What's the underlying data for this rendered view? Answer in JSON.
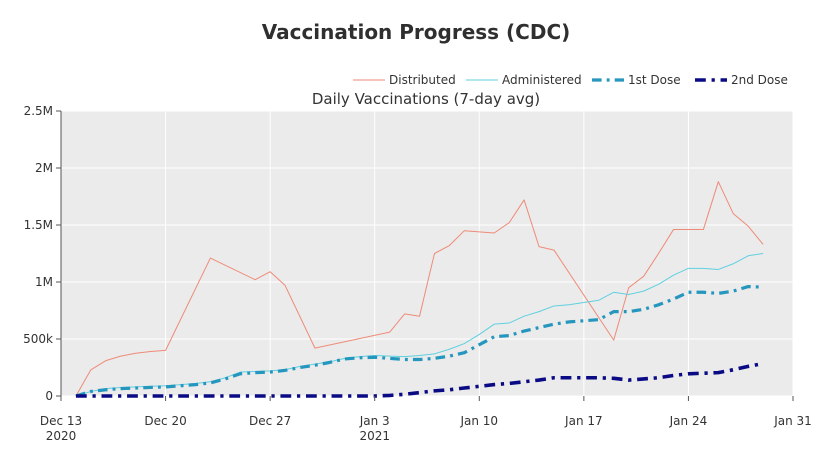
{
  "title": "Vaccination Progress (CDC)",
  "chart_data": {
    "type": "line",
    "title": "Daily Vaccinations (7-day avg)",
    "xlabel": "",
    "ylabel": "",
    "grid": true,
    "legend_position": "top-right",
    "xlim": [
      "2020-12-13",
      "2021-01-31"
    ],
    "ylim": [
      0,
      2500000
    ],
    "x_ticks": [
      {
        "date": "2020-12-13",
        "label": "Dec 13",
        "sub": "2020"
      },
      {
        "date": "2020-12-20",
        "label": "Dec 20",
        "sub": ""
      },
      {
        "date": "2020-12-27",
        "label": "Dec 27",
        "sub": ""
      },
      {
        "date": "2021-01-03",
        "label": "Jan 3",
        "sub": "2021"
      },
      {
        "date": "2021-01-10",
        "label": "Jan 10",
        "sub": ""
      },
      {
        "date": "2021-01-17",
        "label": "Jan 17",
        "sub": ""
      },
      {
        "date": "2021-01-24",
        "label": "Jan 24",
        "sub": ""
      },
      {
        "date": "2021-01-31",
        "label": "Jan 31",
        "sub": ""
      }
    ],
    "y_ticks": [
      {
        "value": 0,
        "label": "0"
      },
      {
        "value": 500000,
        "label": "500k"
      },
      {
        "value": 1000000,
        "label": "1M"
      },
      {
        "value": 1500000,
        "label": "1.5M"
      },
      {
        "value": 2000000,
        "label": "2M"
      },
      {
        "value": 2500000,
        "label": "2.5M"
      }
    ],
    "series": [
      {
        "name": "Distributed",
        "color": "#ef8a78",
        "style": "solid",
        "width": 1,
        "points": [
          [
            "2020-12-14",
            0
          ],
          [
            "2020-12-15",
            230000
          ],
          [
            "2020-12-16",
            310000
          ],
          [
            "2020-12-17",
            350000
          ],
          [
            "2020-12-18",
            375000
          ],
          [
            "2020-12-19",
            390000
          ],
          [
            "2020-12-20",
            400000
          ],
          [
            "2020-12-23",
            1210000
          ],
          [
            "2020-12-26",
            1020000
          ],
          [
            "2020-12-27",
            1090000
          ],
          [
            "2020-12-28",
            970000
          ],
          [
            "2020-12-30",
            420000
          ],
          [
            "2021-01-04",
            560000
          ],
          [
            "2021-01-05",
            720000
          ],
          [
            "2021-01-06",
            700000
          ],
          [
            "2021-01-07",
            1250000
          ],
          [
            "2021-01-08",
            1320000
          ],
          [
            "2021-01-09",
            1450000
          ],
          [
            "2021-01-11",
            1430000
          ],
          [
            "2021-01-12",
            1520000
          ],
          [
            "2021-01-13",
            1720000
          ],
          [
            "2021-01-14",
            1310000
          ],
          [
            "2021-01-15",
            1280000
          ],
          [
            "2021-01-19",
            490000
          ],
          [
            "2021-01-20",
            950000
          ],
          [
            "2021-01-21",
            1050000
          ],
          [
            "2021-01-22",
            1250000
          ],
          [
            "2021-01-23",
            1460000
          ],
          [
            "2021-01-25",
            1460000
          ],
          [
            "2021-01-26",
            1880000
          ],
          [
            "2021-01-27",
            1600000
          ],
          [
            "2021-01-28",
            1490000
          ],
          [
            "2021-01-29",
            1330000
          ]
        ]
      },
      {
        "name": "Administered",
        "color": "#5fd0df",
        "style": "solid",
        "width": 1,
        "points": [
          [
            "2020-12-14",
            0
          ],
          [
            "2020-12-15",
            40000
          ],
          [
            "2020-12-16",
            65000
          ],
          [
            "2020-12-17",
            75000
          ],
          [
            "2020-12-18",
            80000
          ],
          [
            "2020-12-19",
            85000
          ],
          [
            "2020-12-20",
            90000
          ],
          [
            "2020-12-21",
            100000
          ],
          [
            "2020-12-22",
            110000
          ],
          [
            "2020-12-23",
            125000
          ],
          [
            "2020-12-24",
            160000
          ],
          [
            "2020-12-25",
            210000
          ],
          [
            "2020-12-26",
            215000
          ],
          [
            "2020-12-27",
            220000
          ],
          [
            "2020-12-28",
            230000
          ],
          [
            "2020-12-29",
            260000
          ],
          [
            "2020-12-30",
            280000
          ],
          [
            "2020-12-31",
            300000
          ],
          [
            "2021-01-01",
            330000
          ],
          [
            "2021-01-02",
            345000
          ],
          [
            "2021-01-03",
            355000
          ],
          [
            "2021-01-04",
            350000
          ],
          [
            "2021-01-05",
            345000
          ],
          [
            "2021-01-06",
            355000
          ],
          [
            "2021-01-07",
            370000
          ],
          [
            "2021-01-08",
            410000
          ],
          [
            "2021-01-09",
            460000
          ],
          [
            "2021-01-10",
            540000
          ],
          [
            "2021-01-11",
            630000
          ],
          [
            "2021-01-12",
            640000
          ],
          [
            "2021-01-13",
            700000
          ],
          [
            "2021-01-14",
            740000
          ],
          [
            "2021-01-15",
            790000
          ],
          [
            "2021-01-16",
            800000
          ],
          [
            "2021-01-17",
            820000
          ],
          [
            "2021-01-18",
            840000
          ],
          [
            "2021-01-19",
            910000
          ],
          [
            "2021-01-20",
            890000
          ],
          [
            "2021-01-21",
            920000
          ],
          [
            "2021-01-22",
            980000
          ],
          [
            "2021-01-23",
            1060000
          ],
          [
            "2021-01-24",
            1120000
          ],
          [
            "2021-01-25",
            1120000
          ],
          [
            "2021-01-26",
            1110000
          ],
          [
            "2021-01-27",
            1160000
          ],
          [
            "2021-01-28",
            1230000
          ],
          [
            "2021-01-29",
            1250000
          ]
        ]
      },
      {
        "name": "1st Dose",
        "color": "#2596be",
        "style": "dashdot",
        "width": 3.2,
        "points": [
          [
            "2020-12-14",
            0
          ],
          [
            "2020-12-15",
            40000
          ],
          [
            "2020-12-16",
            55000
          ],
          [
            "2020-12-17",
            65000
          ],
          [
            "2020-12-18",
            70000
          ],
          [
            "2020-12-19",
            75000
          ],
          [
            "2020-12-20",
            80000
          ],
          [
            "2020-12-21",
            90000
          ],
          [
            "2020-12-22",
            100000
          ],
          [
            "2020-12-23",
            115000
          ],
          [
            "2020-12-24",
            150000
          ],
          [
            "2020-12-25",
            195000
          ],
          [
            "2020-12-26",
            205000
          ],
          [
            "2020-12-27",
            210000
          ],
          [
            "2020-12-28",
            225000
          ],
          [
            "2020-12-29",
            250000
          ],
          [
            "2020-12-30",
            270000
          ],
          [
            "2020-12-31",
            295000
          ],
          [
            "2021-01-01",
            325000
          ],
          [
            "2021-01-02",
            335000
          ],
          [
            "2021-01-03",
            340000
          ],
          [
            "2021-01-04",
            330000
          ],
          [
            "2021-01-05",
            320000
          ],
          [
            "2021-01-06",
            320000
          ],
          [
            "2021-01-07",
            330000
          ],
          [
            "2021-01-08",
            350000
          ],
          [
            "2021-01-09",
            380000
          ],
          [
            "2021-01-10",
            450000
          ],
          [
            "2021-01-11",
            520000
          ],
          [
            "2021-01-12",
            530000
          ],
          [
            "2021-01-13",
            570000
          ],
          [
            "2021-01-14",
            600000
          ],
          [
            "2021-01-15",
            630000
          ],
          [
            "2021-01-16",
            650000
          ],
          [
            "2021-01-17",
            660000
          ],
          [
            "2021-01-18",
            670000
          ],
          [
            "2021-01-19",
            740000
          ],
          [
            "2021-01-20",
            740000
          ],
          [
            "2021-01-21",
            760000
          ],
          [
            "2021-01-22",
            800000
          ],
          [
            "2021-01-23",
            850000
          ],
          [
            "2021-01-24",
            910000
          ],
          [
            "2021-01-25",
            910000
          ],
          [
            "2021-01-26",
            900000
          ],
          [
            "2021-01-27",
            920000
          ],
          [
            "2021-01-28",
            960000
          ],
          [
            "2021-01-29",
            955000
          ]
        ]
      },
      {
        "name": "2nd Dose",
        "color": "#0a0a85",
        "style": "dashdot",
        "width": 3.6,
        "points": [
          [
            "2020-12-14",
            0
          ],
          [
            "2020-12-20",
            0
          ],
          [
            "2020-12-27",
            0
          ],
          [
            "2021-01-01",
            0
          ],
          [
            "2021-01-03",
            0
          ],
          [
            "2021-01-04",
            5000
          ],
          [
            "2021-01-05",
            15000
          ],
          [
            "2021-01-06",
            30000
          ],
          [
            "2021-01-07",
            45000
          ],
          [
            "2021-01-08",
            55000
          ],
          [
            "2021-01-09",
            70000
          ],
          [
            "2021-01-10",
            85000
          ],
          [
            "2021-01-11",
            100000
          ],
          [
            "2021-01-12",
            110000
          ],
          [
            "2021-01-13",
            125000
          ],
          [
            "2021-01-14",
            140000
          ],
          [
            "2021-01-15",
            160000
          ],
          [
            "2021-01-16",
            160000
          ],
          [
            "2021-01-17",
            160000
          ],
          [
            "2021-01-18",
            160000
          ],
          [
            "2021-01-19",
            155000
          ],
          [
            "2021-01-20",
            140000
          ],
          [
            "2021-01-21",
            150000
          ],
          [
            "2021-01-22",
            160000
          ],
          [
            "2021-01-23",
            180000
          ],
          [
            "2021-01-24",
            195000
          ],
          [
            "2021-01-25",
            200000
          ],
          [
            "2021-01-26",
            205000
          ],
          [
            "2021-01-27",
            230000
          ],
          [
            "2021-01-28",
            260000
          ],
          [
            "2021-01-29",
            285000
          ]
        ]
      }
    ]
  }
}
